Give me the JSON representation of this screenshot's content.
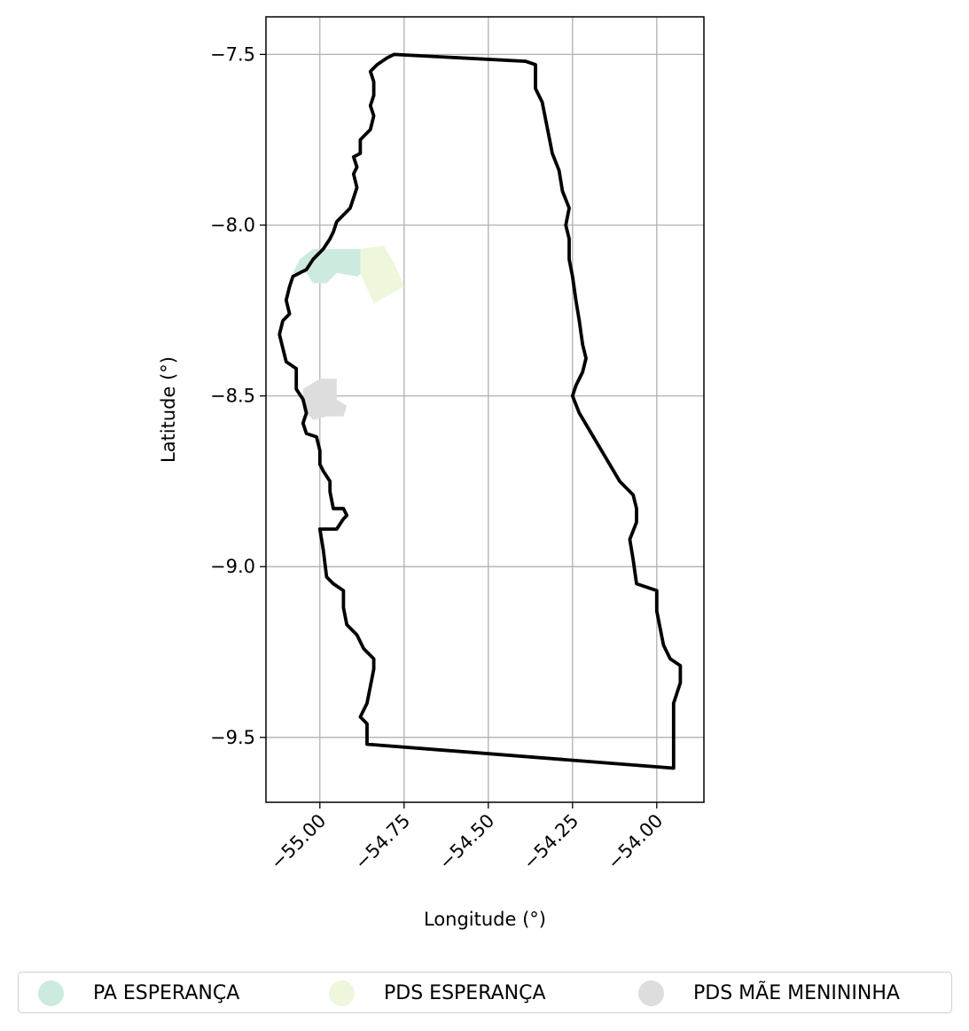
{
  "map": {
    "xlabel": "Longitude (°)",
    "ylabel": "Latitude (°)",
    "xlim": [
      -55.16,
      -53.86
    ],
    "ylim": [
      -9.69,
      -7.39
    ],
    "grid": true,
    "x_ticks": [
      -55.0,
      -54.75,
      -54.5,
      -54.25,
      -54.0
    ],
    "x_tick_labels": [
      "−55.00",
      "−54.75",
      "−54.50",
      "−54.25",
      "−54.00"
    ],
    "y_ticks": [
      -7.5,
      -8.0,
      -8.5,
      -9.0,
      -9.5
    ],
    "y_tick_labels": [
      "−7.5",
      "−8.0",
      "−8.5",
      "−9.0",
      "−9.5"
    ],
    "boundary": {
      "stroke_color": "#000000",
      "coords": [
        [
          -54.78,
          -7.5
        ],
        [
          -54.39,
          -7.52
        ],
        [
          -54.36,
          -7.53
        ],
        [
          -54.36,
          -7.6
        ],
        [
          -54.34,
          -7.64
        ],
        [
          -54.32,
          -7.74
        ],
        [
          -54.31,
          -7.79
        ],
        [
          -54.29,
          -7.84
        ],
        [
          -54.28,
          -7.9
        ],
        [
          -54.26,
          -7.95
        ],
        [
          -54.27,
          -8.0
        ],
        [
          -54.26,
          -8.04
        ],
        [
          -54.26,
          -8.1
        ],
        [
          -54.25,
          -8.15
        ],
        [
          -54.24,
          -8.22
        ],
        [
          -54.23,
          -8.28
        ],
        [
          -54.22,
          -8.35
        ],
        [
          -54.21,
          -8.39
        ],
        [
          -54.22,
          -8.43
        ],
        [
          -54.24,
          -8.47
        ],
        [
          -54.25,
          -8.5
        ],
        [
          -54.23,
          -8.55
        ],
        [
          -54.2,
          -8.6
        ],
        [
          -54.17,
          -8.65
        ],
        [
          -54.14,
          -8.7
        ],
        [
          -54.11,
          -8.75
        ],
        [
          -54.07,
          -8.79
        ],
        [
          -54.06,
          -8.83
        ],
        [
          -54.06,
          -8.87
        ],
        [
          -54.08,
          -8.92
        ],
        [
          -54.07,
          -8.98
        ],
        [
          -54.06,
          -9.05
        ],
        [
          -54.0,
          -9.07
        ],
        [
          -54.0,
          -9.13
        ],
        [
          -53.99,
          -9.18
        ],
        [
          -53.98,
          -9.23
        ],
        [
          -53.96,
          -9.27
        ],
        [
          -53.93,
          -9.29
        ],
        [
          -53.93,
          -9.34
        ],
        [
          -53.95,
          -9.4
        ],
        [
          -53.95,
          -9.45
        ],
        [
          -53.95,
          -9.53
        ],
        [
          -53.95,
          -9.59
        ],
        [
          -54.86,
          -9.52
        ],
        [
          -54.86,
          -9.46
        ],
        [
          -54.88,
          -9.44
        ],
        [
          -54.86,
          -9.4
        ],
        [
          -54.85,
          -9.35
        ],
        [
          -54.84,
          -9.3
        ],
        [
          -54.84,
          -9.27
        ],
        [
          -54.87,
          -9.24
        ],
        [
          -54.89,
          -9.2
        ],
        [
          -54.92,
          -9.17
        ],
        [
          -54.93,
          -9.12
        ],
        [
          -54.93,
          -9.07
        ],
        [
          -54.96,
          -9.05
        ],
        [
          -54.98,
          -9.03
        ],
        [
          -54.99,
          -8.95
        ],
        [
          -55.0,
          -8.89
        ],
        [
          -54.97,
          -8.89
        ],
        [
          -54.95,
          -8.89
        ],
        [
          -54.93,
          -8.86
        ],
        [
          -54.92,
          -8.85
        ],
        [
          -54.93,
          -8.83
        ],
        [
          -54.96,
          -8.83
        ],
        [
          -54.97,
          -8.78
        ],
        [
          -54.97,
          -8.75
        ],
        [
          -54.99,
          -8.72
        ],
        [
          -55.0,
          -8.7
        ],
        [
          -55.0,
          -8.66
        ],
        [
          -55.01,
          -8.62
        ],
        [
          -55.04,
          -8.61
        ],
        [
          -55.05,
          -8.58
        ],
        [
          -55.04,
          -8.55
        ],
        [
          -55.05,
          -8.51
        ],
        [
          -55.07,
          -8.48
        ],
        [
          -55.07,
          -8.42
        ],
        [
          -55.1,
          -8.4
        ],
        [
          -55.11,
          -8.36
        ],
        [
          -55.12,
          -8.32
        ],
        [
          -55.11,
          -8.28
        ],
        [
          -55.09,
          -8.26
        ],
        [
          -55.1,
          -8.22
        ],
        [
          -55.09,
          -8.18
        ],
        [
          -55.08,
          -8.15
        ],
        [
          -55.06,
          -8.14
        ],
        [
          -55.04,
          -8.13
        ],
        [
          -55.02,
          -8.1
        ],
        [
          -54.99,
          -8.07
        ],
        [
          -54.97,
          -8.04
        ],
        [
          -54.96,
          -8.02
        ],
        [
          -54.95,
          -7.99
        ],
        [
          -54.93,
          -7.97
        ],
        [
          -54.91,
          -7.95
        ],
        [
          -54.9,
          -7.92
        ],
        [
          -54.89,
          -7.89
        ],
        [
          -54.9,
          -7.85
        ],
        [
          -54.89,
          -7.83
        ],
        [
          -54.9,
          -7.8
        ],
        [
          -54.88,
          -7.79
        ],
        [
          -54.88,
          -7.75
        ],
        [
          -54.85,
          -7.72
        ],
        [
          -54.84,
          -7.68
        ],
        [
          -54.85,
          -7.65
        ],
        [
          -54.84,
          -7.62
        ],
        [
          -54.84,
          -7.58
        ],
        [
          -54.85,
          -7.55
        ],
        [
          -54.83,
          -7.53
        ],
        [
          -54.8,
          -7.51
        ],
        [
          -54.78,
          -7.5
        ]
      ]
    },
    "regions": [
      {
        "name": "PA ESPERANÇA",
        "color": "#cdeadf",
        "polygon": [
          [
            -55.06,
            -8.1
          ],
          [
            -55.02,
            -8.07
          ],
          [
            -54.97,
            -8.07
          ],
          [
            -54.93,
            -8.07
          ],
          [
            -54.87,
            -8.07
          ],
          [
            -54.86,
            -8.13
          ],
          [
            -54.89,
            -8.15
          ],
          [
            -54.95,
            -8.14
          ],
          [
            -54.98,
            -8.17
          ],
          [
            -55.02,
            -8.17
          ],
          [
            -55.04,
            -8.14
          ],
          [
            -55.08,
            -8.14
          ]
        ]
      },
      {
        "name": "PDS ESPERANÇA",
        "color": "#eef7dc",
        "polygon": [
          [
            -54.88,
            -8.07
          ],
          [
            -54.81,
            -8.06
          ],
          [
            -54.78,
            -8.11
          ],
          [
            -54.75,
            -8.18
          ],
          [
            -54.84,
            -8.23
          ],
          [
            -54.88,
            -8.14
          ]
        ]
      },
      {
        "name": "PDS MÃE MENININHA",
        "color": "#dddddd",
        "polygon": [
          [
            -55.0,
            -8.45
          ],
          [
            -54.95,
            -8.45
          ],
          [
            -54.95,
            -8.51
          ],
          [
            -54.92,
            -8.53
          ],
          [
            -54.93,
            -8.56
          ],
          [
            -54.98,
            -8.56
          ],
          [
            -55.02,
            -8.57
          ],
          [
            -55.05,
            -8.54
          ],
          [
            -55.05,
            -8.48
          ]
        ]
      }
    ]
  },
  "legend": {
    "items": [
      {
        "label": "PA ESPERANÇA",
        "color": "#cdeadf"
      },
      {
        "label": "PDS ESPERANÇA",
        "color": "#eef7dc"
      },
      {
        "label": "PDS MÃE MENININHA",
        "color": "#dddddd"
      }
    ]
  }
}
